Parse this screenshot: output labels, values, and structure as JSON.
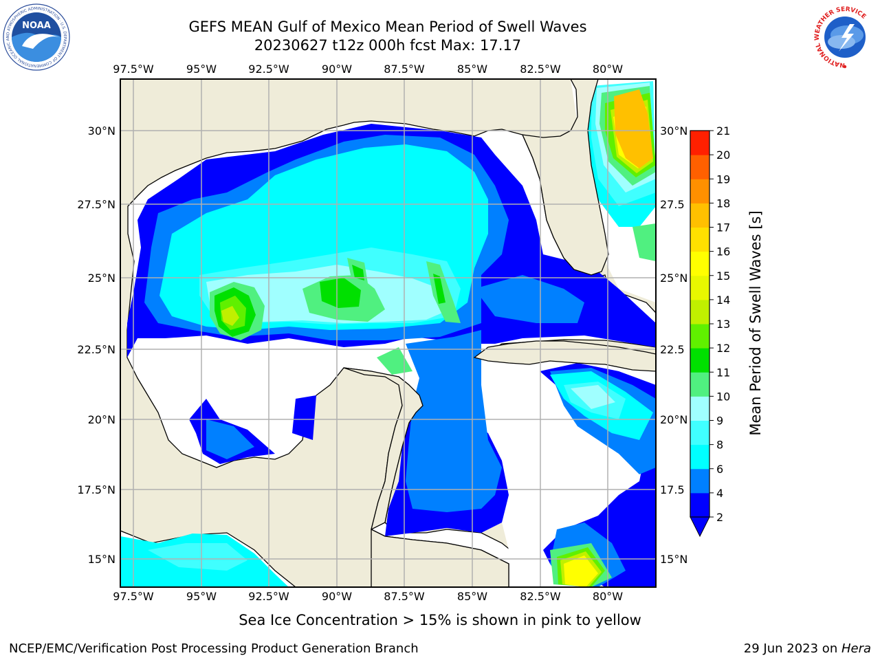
{
  "header": {
    "title": "GEFS MEAN Gulf of Mexico Mean Period of Swell Waves",
    "subtitle": "20230627 t12z 000h fcst   Max: 17.17",
    "logo_left": "NOAA",
    "logo_left_ring_text": "NATIONAL OCEANIC AND ATMOSPHERIC ADMINISTRATION · U.S. DEPARTMENT OF COMMERCE",
    "logo_right_ring_text": "NATIONAL WEATHER SERVICE"
  },
  "map": {
    "lon_ticks": [
      "97.5°W",
      "95°W",
      "92.5°W",
      "90°W",
      "87.5°W",
      "85°W",
      "82.5°W",
      "80°W"
    ],
    "lat_ticks_left": [
      "30°N",
      "27.5°N",
      "25°N",
      "22.5°N",
      "20°N",
      "17.5°N",
      "15°N"
    ],
    "lat_ticks_right": [
      "30°N",
      "27.5",
      "25°N",
      "22.5",
      "20°N",
      "17.5",
      "15°N"
    ],
    "lon_range": [
      -98,
      -78.2
    ],
    "lat_range": [
      14,
      31.8
    ],
    "land_color": "#efecd9",
    "grid_color": "#b0b0b0"
  },
  "colorbar": {
    "label": "Mean Period of Swell Waves [s]",
    "levels": [
      "2",
      "4",
      "6",
      "8",
      "9",
      "10",
      "11",
      "12",
      "13",
      "14",
      "15",
      "16",
      "17",
      "18",
      "19",
      "20",
      "21"
    ],
    "colors": [
      "#0000ff",
      "#0080ff",
      "#00ffff",
      "#40ffff",
      "#a0ffff",
      "#50f080",
      "#00e000",
      "#60f000",
      "#c0f000",
      "#e8f800",
      "#ffff00",
      "#ffe000",
      "#ffc000",
      "#ff9000",
      "#ff6000",
      "#ff2000"
    ],
    "extend_color": "#0000ff"
  },
  "footer": {
    "ice_note": "Sea Ice Concentration > 15% is shown in pink to yellow",
    "left": "NCEP/EMC/Verification Post Processing Product Generation Branch",
    "right_date": "29 Jun 2023 on ",
    "right_host": "Hera"
  }
}
